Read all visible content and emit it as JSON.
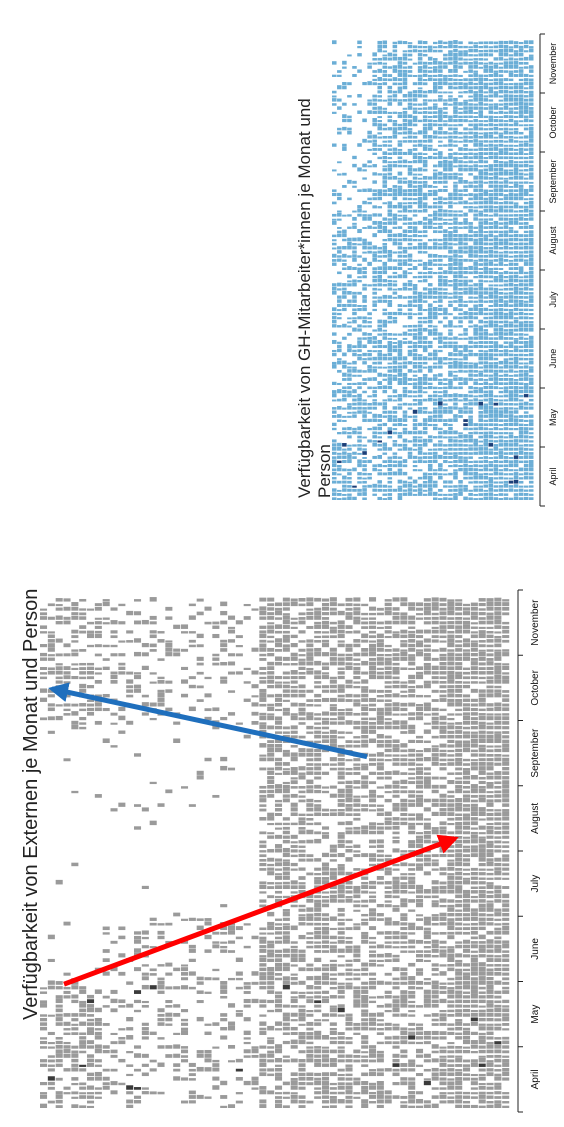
{
  "chart_data": [
    {
      "type": "heatmap",
      "title": "Verfügbarkeit von Externen je Monat und Person",
      "axis": "month",
      "categories": [
        "April",
        "May",
        "June",
        "July",
        "August",
        "September",
        "October",
        "November"
      ],
      "cell_color": "#9a9a9a",
      "highlight_color": "#3a3a3a",
      "grid": false,
      "annotations": [
        {
          "kind": "arrow",
          "color": "#ff0000",
          "from": "May",
          "to": "August"
        },
        {
          "kind": "arrow",
          "color": "#1f6fbd",
          "from": "September",
          "to": "October"
        }
      ]
    },
    {
      "type": "heatmap",
      "title": "Verfügbarkeit von GH-Mitarbeiter*innen je Monat und Person",
      "axis": "month",
      "categories": [
        "April",
        "May",
        "June",
        "July",
        "August",
        "September",
        "October",
        "November"
      ],
      "cell_color": "#6baed6",
      "highlight_color": "#1c3f78",
      "grid": false
    }
  ]
}
